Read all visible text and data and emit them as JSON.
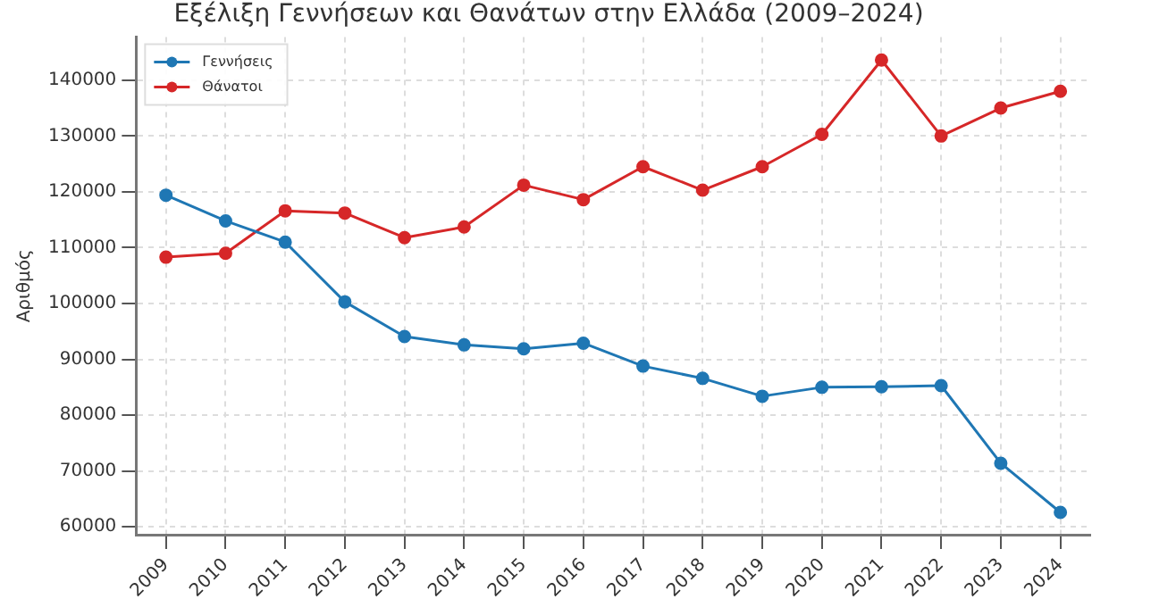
{
  "chart_data": {
    "type": "line",
    "title": "Εξέλιξη Γεννήσεων και Θανάτων στην Ελλάδα (2009–2024)",
    "ylabel": "Αριθμός",
    "categories": [
      "2009",
      "2010",
      "2011",
      "2012",
      "2013",
      "2014",
      "2015",
      "2016",
      "2017",
      "2018",
      "2019",
      "2020",
      "2021",
      "2022",
      "2023",
      "2024"
    ],
    "series": [
      {
        "name": "Γεννήσεις",
        "color": "#1f77b4",
        "values": [
          119400,
          114800,
          111000,
          100300,
          94100,
          92600,
          91900,
          92900,
          88800,
          86600,
          83400,
          85000,
          85100,
          85300,
          71400,
          62600
        ]
      },
      {
        "name": "Θάνατοι",
        "color": "#d62728",
        "values": [
          108300,
          109000,
          116600,
          116200,
          111800,
          113700,
          121200,
          118600,
          124500,
          120300,
          124500,
          130300,
          143600,
          130000,
          135000,
          138000
        ]
      }
    ],
    "ylim": [
      58600,
      147700
    ],
    "yticks": [
      60000,
      70000,
      80000,
      90000,
      100000,
      110000,
      120000,
      130000,
      140000
    ],
    "grid": true,
    "legend": "top left",
    "marker": "circle",
    "line_style": "solid"
  }
}
